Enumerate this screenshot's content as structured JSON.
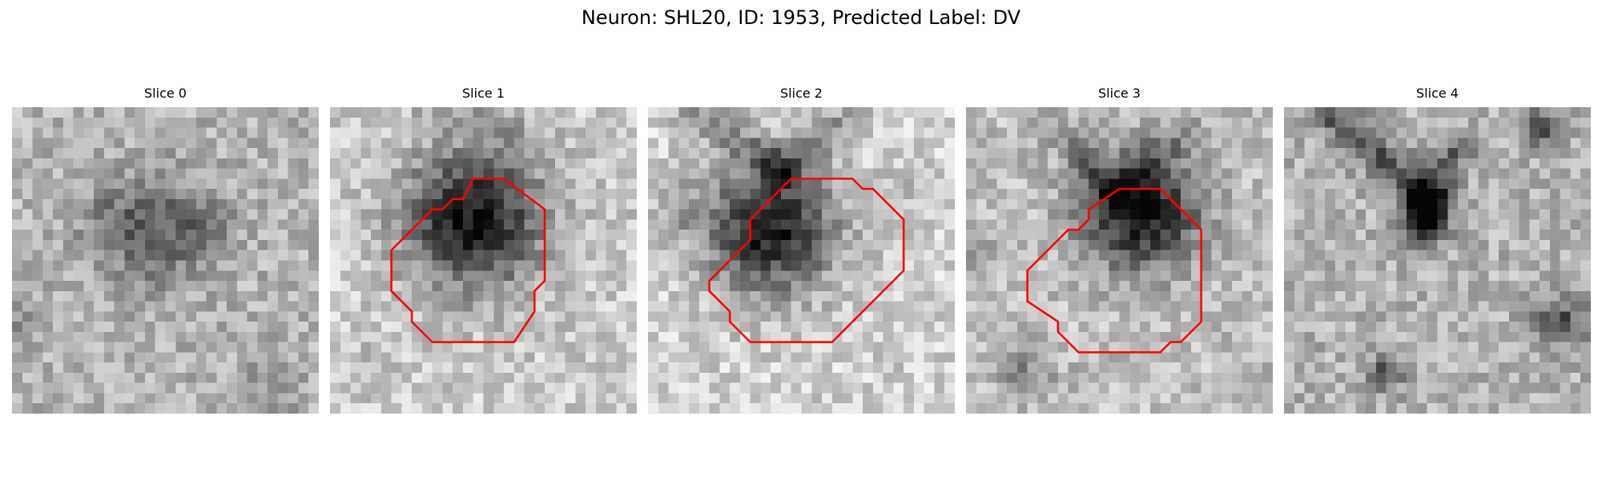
{
  "figure": {
    "title": "Neuron: SHL20, ID: 1953, Predicted Label: DV"
  },
  "panels": [
    {
      "label": "Slice 0",
      "has_outline": false
    },
    {
      "label": "Slice 1",
      "has_outline": true
    },
    {
      "label": "Slice 2",
      "has_outline": true
    },
    {
      "label": "Slice 3",
      "has_outline": true
    },
    {
      "label": "Slice 4",
      "has_outline": false
    }
  ],
  "colors": {
    "outline": "#ff0000",
    "background": "#ffffff",
    "colormap": "grayscale"
  }
}
